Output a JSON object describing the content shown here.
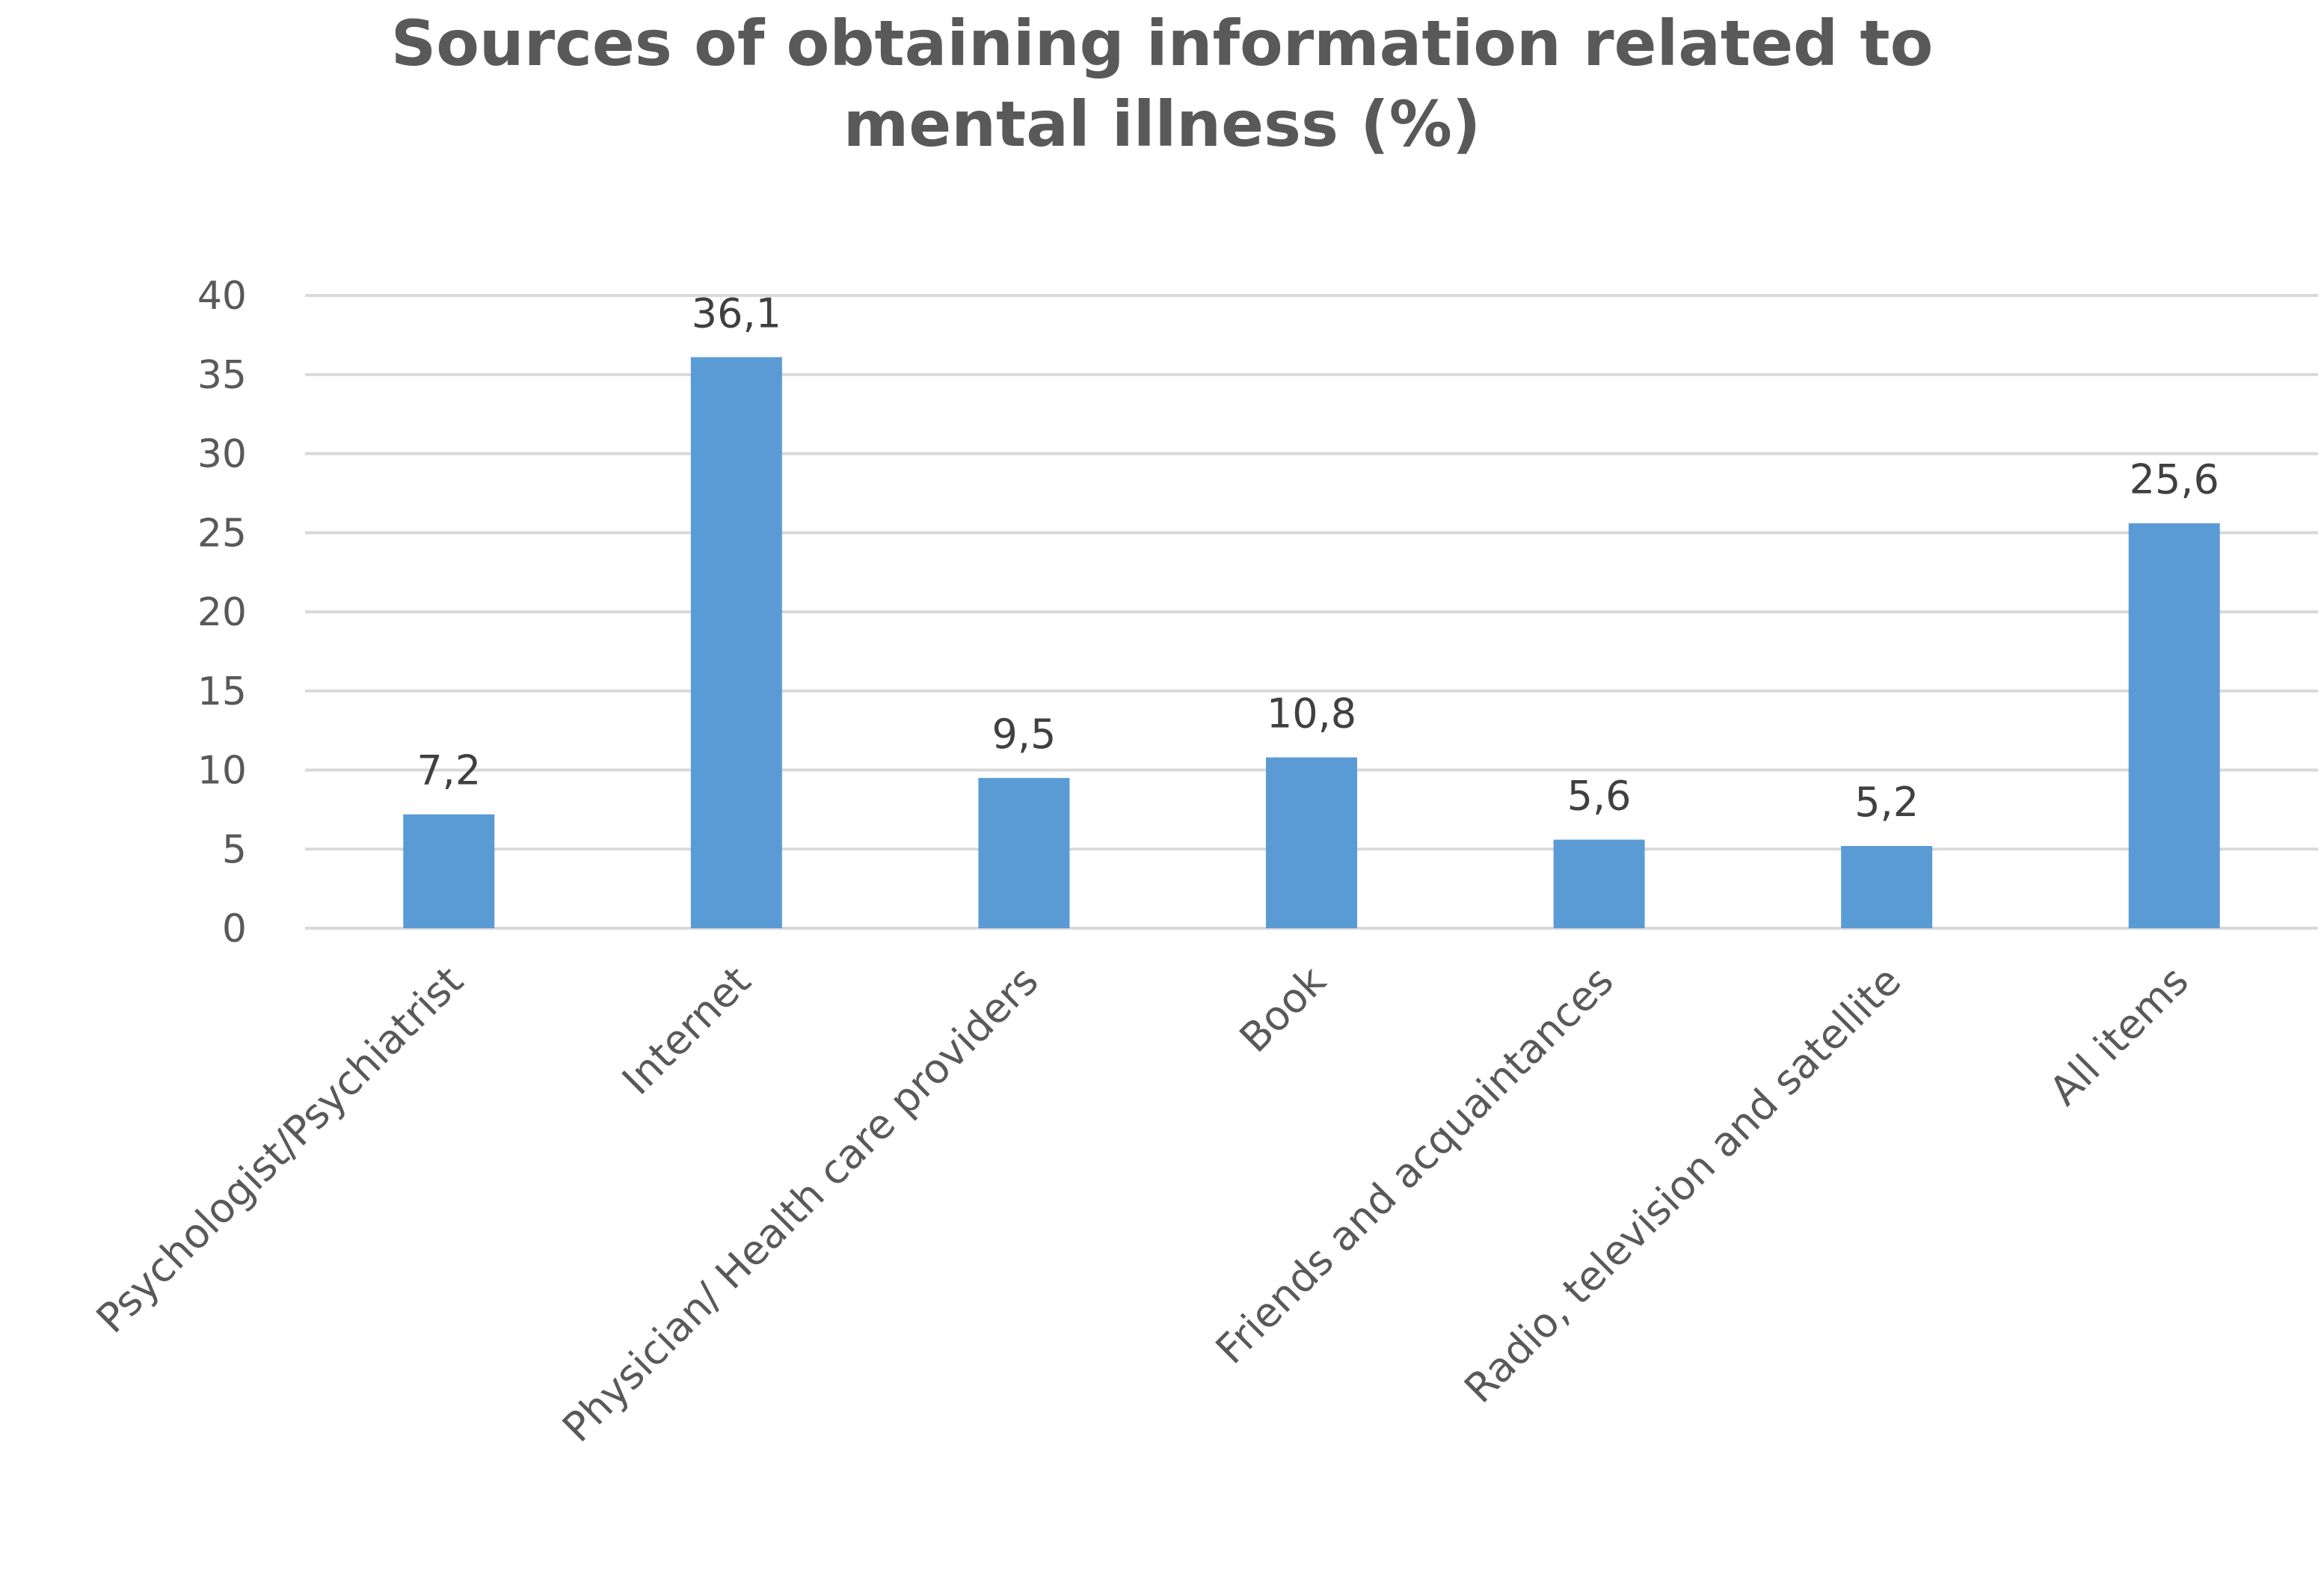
{
  "chart_data": {
    "type": "bar",
    "title_lines": [
      "Sources of obtaining information related to",
      "mental illness (%)"
    ],
    "categories": [
      "Psychologist/Psychiatrist",
      "Internet",
      "Physician/ Health care providers",
      "Book",
      "Friends and acquaintances",
      "Radio, television and satellite",
      "All items"
    ],
    "values": [
      7.2,
      36.1,
      9.5,
      10.8,
      5.6,
      5.2,
      25.6
    ],
    "value_labels": [
      "7,2",
      "36,1",
      "9,5",
      "10,8",
      "5,6",
      "5,2",
      "25,6"
    ],
    "y_ticks": [
      0,
      5,
      10,
      15,
      20,
      25,
      30,
      35,
      40
    ],
    "ylim": [
      0,
      40
    ],
    "grid": true,
    "legend": "none",
    "bar_color": "#5B9BD5",
    "grid_color": "#D9D9D9"
  }
}
